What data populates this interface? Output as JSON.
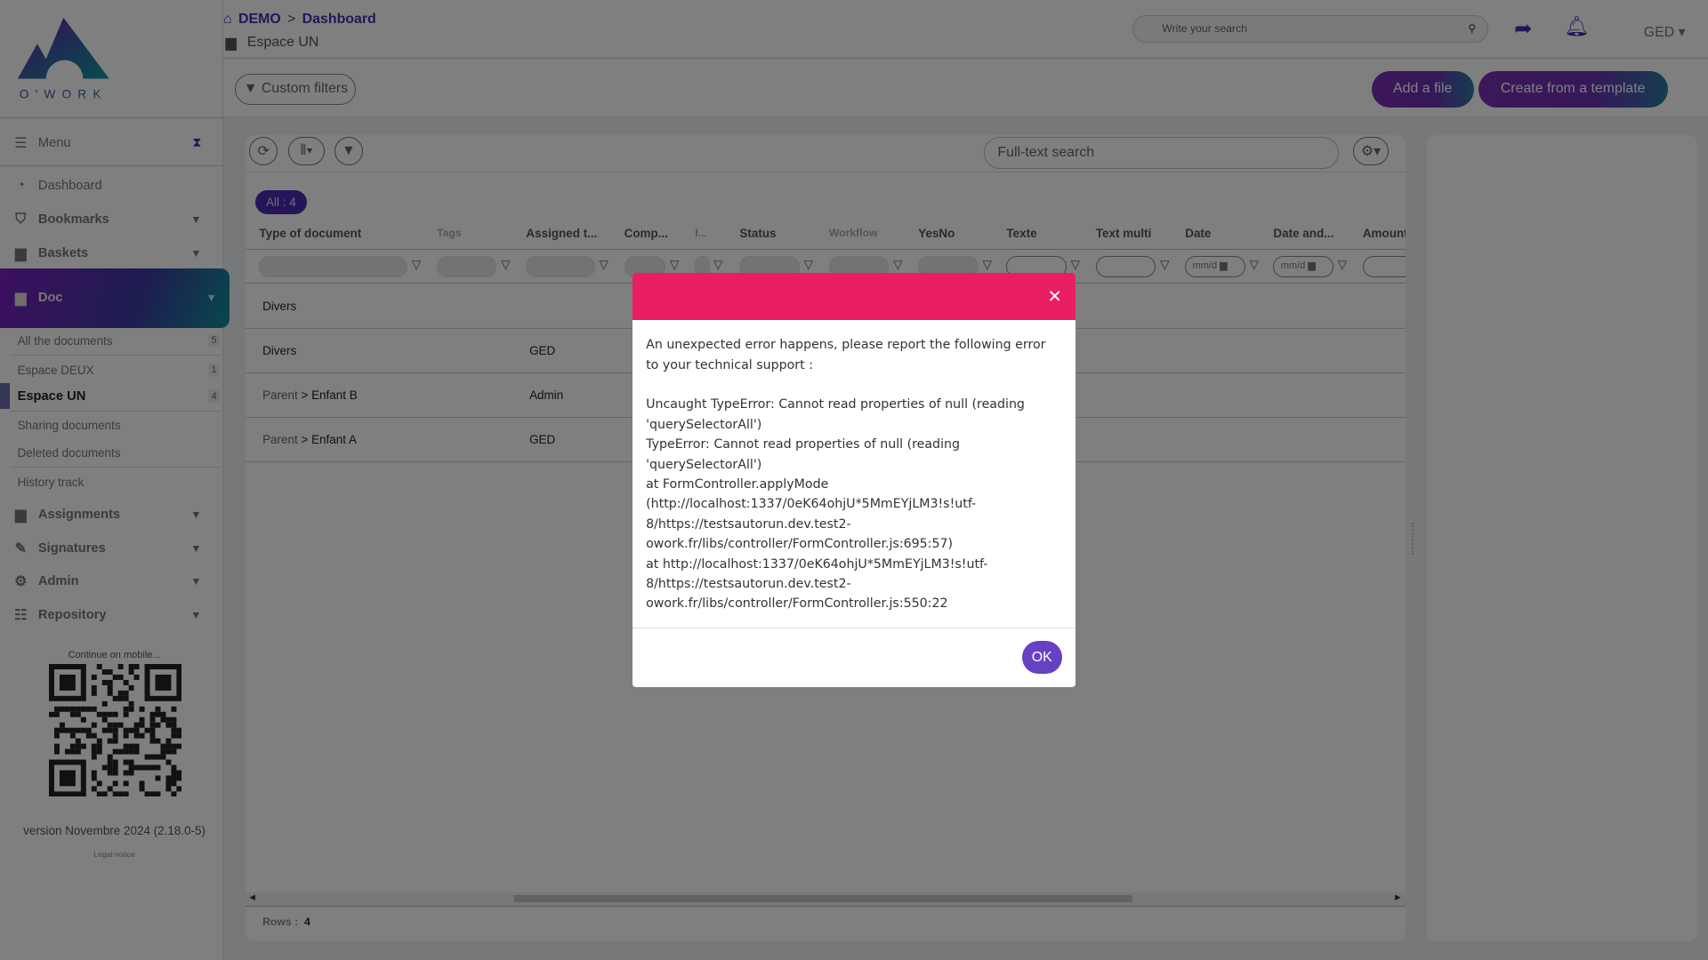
{
  "app": {
    "logo_text": "O'WORK"
  },
  "breadcrumb": {
    "root": "DEMO",
    "separator": ">",
    "current": "Dashboard",
    "space": "Espace UN"
  },
  "header": {
    "search_placeholder": "Write your search",
    "user_menu": "GED"
  },
  "toolbar": {
    "custom_filters": "Custom filters",
    "add_file": "Add a file",
    "create_template": "Create from a template"
  },
  "sidebar": {
    "menu_label": "Menu",
    "items": [
      {
        "label": "Dashboard",
        "icon": "gauge-icon"
      },
      {
        "label": "Bookmarks",
        "icon": "bookmark-icon"
      },
      {
        "label": "Baskets",
        "icon": "book-icon"
      },
      {
        "label": "Doc",
        "icon": "book-icon"
      }
    ],
    "doc_items": [
      {
        "label": "All the documents",
        "count": "5"
      },
      {
        "label": "Espace DEUX",
        "count": "1"
      },
      {
        "label": "Espace UN",
        "count": "4"
      },
      {
        "label": "Sharing documents"
      },
      {
        "label": "Deleted documents"
      },
      {
        "label": "History track"
      }
    ],
    "more_items": [
      {
        "label": "Assignments",
        "icon": "book-icon"
      },
      {
        "label": "Signatures",
        "icon": "signature-icon"
      },
      {
        "label": "Admin",
        "icon": "gear-icon"
      },
      {
        "label": "Repository",
        "icon": "list-icon"
      }
    ],
    "mobile_label": "Continue on mobile...",
    "version": "version Novembre 2024 (2.18.0-5)",
    "legal": "Legal notice"
  },
  "grid": {
    "fulltext_placeholder": "Full-text search",
    "all_badge": "All : 4",
    "columns": [
      "Type of document",
      "Tags",
      "Assigned t...",
      "Comp...",
      "I...",
      "Status",
      "Workflow",
      "YesNo",
      "Texte",
      "Text multi",
      "Date",
      "Date and...",
      "Amount"
    ],
    "date_placeholder": "mm/d",
    "rows": [
      {
        "type": "Divers",
        "parent": "",
        "assigned": ""
      },
      {
        "type": "Divers",
        "parent": "",
        "assigned": "GED"
      },
      {
        "type": "Enfant B",
        "parent": "Parent",
        "assigned": "Admin"
      },
      {
        "type": "Enfant A",
        "parent": "Parent",
        "assigned": "GED"
      }
    ],
    "rows_label": "Rows :",
    "rows_count": "4"
  },
  "modal": {
    "message": "An unexpected error happens, please report the following error to your technical support :",
    "error": "Uncaught TypeError: Cannot read properties of null (reading 'querySelectorAll')\nTypeError: Cannot read properties of null (reading 'querySelectorAll')\nat FormController.applyMode (http://localhost:1337/0eK64ohjU*5MmEYjLM3!s!utf-8/https://testsautorun.dev.test2-owork.fr/libs/controller/FormController.js:695:57)\nat http://localhost:1337/0eK64ohjU*5MmEYjLM3!s!utf-8/https://testsautorun.dev.test2-owork.fr/libs/controller/FormController.js:550:22",
    "ok": "OK",
    "header_color": "#e91e63"
  },
  "colors": {
    "accent": "#6741c4",
    "brand_gradient_start": "#7a2fb5",
    "brand_gradient_end": "#1a8a9a"
  }
}
